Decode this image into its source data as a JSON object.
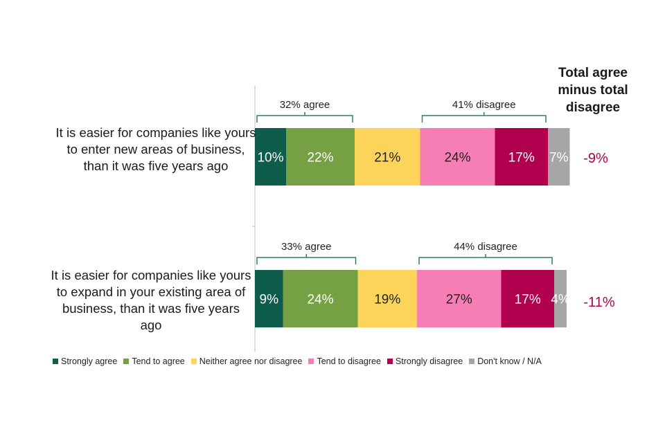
{
  "chart_data": {
    "type": "bar",
    "orientation": "horizontal",
    "stacked": true,
    "title": "",
    "xlim": [
      0,
      100
    ],
    "net_header": "Total agree minus total disagree",
    "categories": [
      "It is easier for companies like yours to enter new areas of business, than it was five years ago",
      "It is easier for companies like yours to expand in your existing area of business, than it was five years ago"
    ],
    "series": [
      {
        "name": "Strongly agree",
        "color": "#0e5c4a",
        "values": [
          10,
          9
        ],
        "labels": [
          "10%",
          "9%"
        ],
        "label_color": "#ffffff"
      },
      {
        "name": "Tend to agree",
        "color": "#75a043",
        "values": [
          22,
          24
        ],
        "labels": [
          "22%",
          "24%"
        ],
        "label_color": "#ffffff"
      },
      {
        "name": "Neither agree nor disagree",
        "color": "#fdd45a",
        "values": [
          21,
          19
        ],
        "labels": [
          "21%",
          "19%"
        ],
        "label_color": "#222222"
      },
      {
        "name": "Tend to disagree",
        "color": "#f67eb4",
        "values": [
          24,
          27
        ],
        "labels": [
          "24%",
          "27%"
        ],
        "label_color": "#222222"
      },
      {
        "name": "Strongly disagree",
        "color": "#b0004e",
        "values": [
          17,
          17
        ],
        "labels": [
          "17%",
          "17%"
        ],
        "label_color": "#ffffff"
      },
      {
        "name": "Don't know / N/A",
        "color": "#a6a6a6",
        "values": [
          7,
          4
        ],
        "labels": [
          "7%",
          "4%"
        ],
        "label_color": "#ffffff"
      }
    ],
    "brackets": [
      [
        {
          "label": "32% agree",
          "from_series": 0,
          "to_series": 1
        },
        {
          "label": "41% disagree",
          "from_series": 3,
          "to_series": 4
        }
      ],
      [
        {
          "label": "33% agree",
          "from_series": 0,
          "to_series": 1
        },
        {
          "label": "44% disagree",
          "from_series": 3,
          "to_series": 4
        }
      ]
    ],
    "net_values": [
      "-9%",
      "-11%"
    ],
    "net_color": "#b0004e",
    "legend_position": "bottom"
  }
}
